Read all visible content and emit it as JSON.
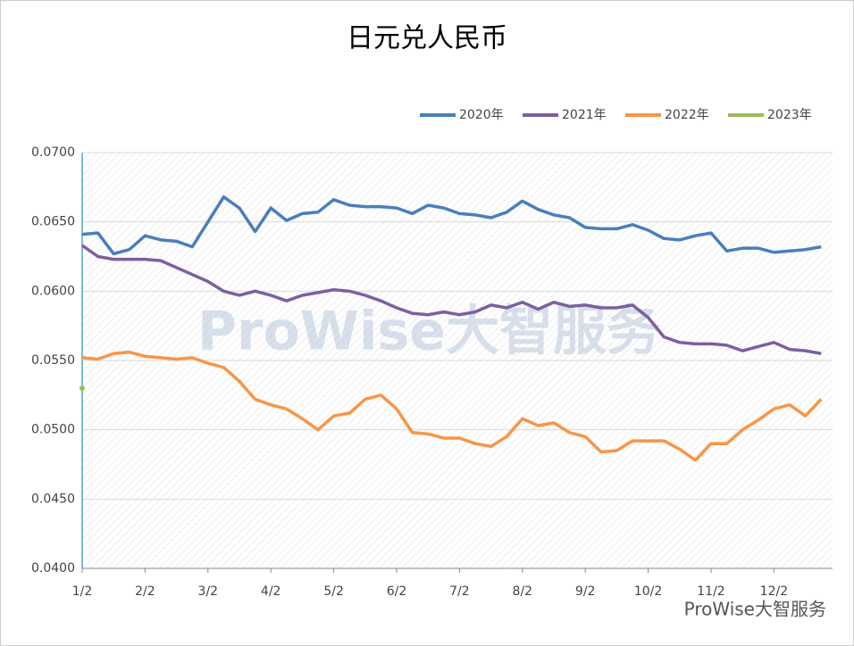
{
  "chart_data": {
    "type": "line",
    "title": "日元兑人民币",
    "watermark": "ProWise大智服务",
    "footer": "ProWise大智服务",
    "categories": [
      "1/2",
      null,
      null,
      null,
      "2/2",
      null,
      null,
      null,
      "3/2",
      null,
      null,
      null,
      "4/2",
      null,
      null,
      null,
      "5/2",
      null,
      null,
      null,
      "6/2",
      null,
      null,
      null,
      "7/2",
      null,
      null,
      null,
      "8/2",
      null,
      null,
      null,
      "9/2",
      null,
      null,
      null,
      "10/2",
      null,
      null,
      null,
      "11/2",
      null,
      null,
      null,
      "12/2",
      null,
      null,
      null
    ],
    "series": [
      {
        "name": "2020年",
        "color": "#4a7ebb",
        "values": [
          0.0641,
          0.0642,
          0.0627,
          0.063,
          0.064,
          0.0637,
          0.0636,
          0.0632,
          0.065,
          0.0668,
          0.066,
          0.0643,
          0.066,
          0.0651,
          0.0656,
          0.0657,
          0.0666,
          0.0662,
          0.0661,
          0.0661,
          0.066,
          0.0656,
          0.0662,
          0.066,
          0.0656,
          0.0655,
          0.0653,
          0.0657,
          0.0665,
          0.0659,
          0.0655,
          0.0653,
          0.0646,
          0.0645,
          0.0645,
          0.0648,
          0.0644,
          0.0638,
          0.0637,
          0.064,
          0.0642,
          0.0629,
          0.0631,
          0.0631,
          0.0628,
          0.0629,
          0.063,
          0.0632
        ]
      },
      {
        "name": "2021年",
        "color": "#7d5fa0",
        "values": [
          0.0633,
          0.0625,
          0.0623,
          0.0623,
          0.0623,
          0.0622,
          0.0617,
          0.0612,
          0.0607,
          0.06,
          0.0597,
          0.06,
          0.0597,
          0.0593,
          0.0597,
          0.0599,
          0.0601,
          0.06,
          0.0597,
          0.0593,
          0.0588,
          0.0584,
          0.0583,
          0.0585,
          0.0583,
          0.0585,
          0.059,
          0.0588,
          0.0592,
          0.0587,
          0.0592,
          0.0589,
          0.059,
          0.0588,
          0.0588,
          0.059,
          0.0581,
          0.0567,
          0.0563,
          0.0562,
          0.0562,
          0.0561,
          0.0557,
          0.056,
          0.0563,
          0.0558,
          0.0557,
          0.0555
        ]
      },
      {
        "name": "2022年",
        "color": "#f79646",
        "values": [
          0.0552,
          0.0551,
          0.0555,
          0.0556,
          0.0553,
          0.0552,
          0.0551,
          0.0552,
          0.0548,
          0.0545,
          0.0535,
          0.0522,
          0.0518,
          0.0515,
          0.0508,
          0.05,
          0.051,
          0.0512,
          0.0522,
          0.0525,
          0.0515,
          0.0498,
          0.0497,
          0.0494,
          0.0494,
          0.049,
          0.0488,
          0.0495,
          0.0508,
          0.0503,
          0.0505,
          0.0498,
          0.0495,
          0.0484,
          0.0485,
          0.0492,
          0.0492,
          0.0492,
          0.0486,
          0.0478,
          0.049,
          0.049,
          0.05,
          0.0507,
          0.0515,
          0.0518,
          0.051,
          0.0522
        ]
      },
      {
        "name": "2023年",
        "color": "#9bbb59",
        "values": [
          0.053,
          null,
          null,
          null,
          null,
          null,
          null,
          null,
          null,
          null,
          null,
          null,
          null,
          null,
          null,
          null,
          null,
          null,
          null,
          null,
          null,
          null,
          null,
          null,
          null,
          null,
          null,
          null,
          null,
          null,
          null,
          null,
          null,
          null,
          null,
          null,
          null,
          null,
          null,
          null,
          null,
          null,
          null,
          null,
          null,
          null,
          null,
          null
        ]
      }
    ],
    "ylim": [
      0.04,
      0.07
    ],
    "yticks": [
      {
        "value": 0.04,
        "label": "0.0400"
      },
      {
        "value": 0.045,
        "label": "0.0450"
      },
      {
        "value": 0.05,
        "label": "0.0500"
      },
      {
        "value": 0.055,
        "label": "0.0550"
      },
      {
        "value": 0.06,
        "label": "0.0600"
      },
      {
        "value": 0.065,
        "label": "0.0650"
      },
      {
        "value": 0.07,
        "label": "0.0700"
      }
    ],
    "grid": true,
    "legend": "top-right"
  }
}
